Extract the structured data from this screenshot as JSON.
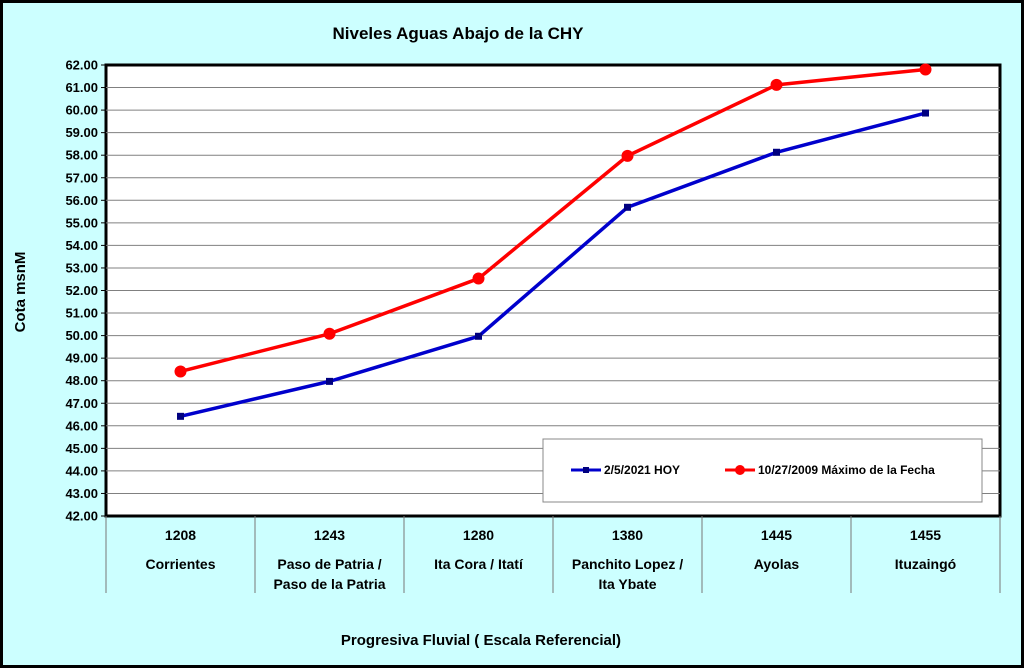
{
  "chart_data": {
    "type": "line",
    "title": "Niveles Aguas Abajo de la CHY",
    "ylabel": "Cota msnM",
    "xlabel": "Progresiva Fluvial ( Escala Referencial)",
    "ylim": [
      42,
      62
    ],
    "ytick_step": 1,
    "ytick_format": "2dp",
    "grid": true,
    "legend_placement": "bottom-right",
    "categories": [
      {
        "km": "1208",
        "name": [
          "Corrientes"
        ]
      },
      {
        "km": "1243",
        "name": [
          "Paso de Patria /",
          "Paso de la Patria"
        ]
      },
      {
        "km": "1280",
        "name": [
          "Ita Cora / Itatí"
        ]
      },
      {
        "km": "1380",
        "name": [
          "Panchito Lopez /",
          "Ita Ybate"
        ]
      },
      {
        "km": "1445",
        "name": [
          "Ayolas"
        ]
      },
      {
        "km": "1455",
        "name": [
          "Ituzaingó"
        ]
      }
    ],
    "series": [
      {
        "name": "2/5/2021 HOY",
        "color": "#0000cc",
        "marker": "square",
        "values": [
          46.42,
          47.97,
          49.97,
          55.69,
          58.13,
          59.87
        ]
      },
      {
        "name": "10/27/2009 Máximo de la Fecha",
        "color": "#ff0000",
        "marker": "circle",
        "values": [
          48.41,
          50.08,
          52.53,
          57.97,
          61.12,
          61.8
        ]
      }
    ]
  }
}
